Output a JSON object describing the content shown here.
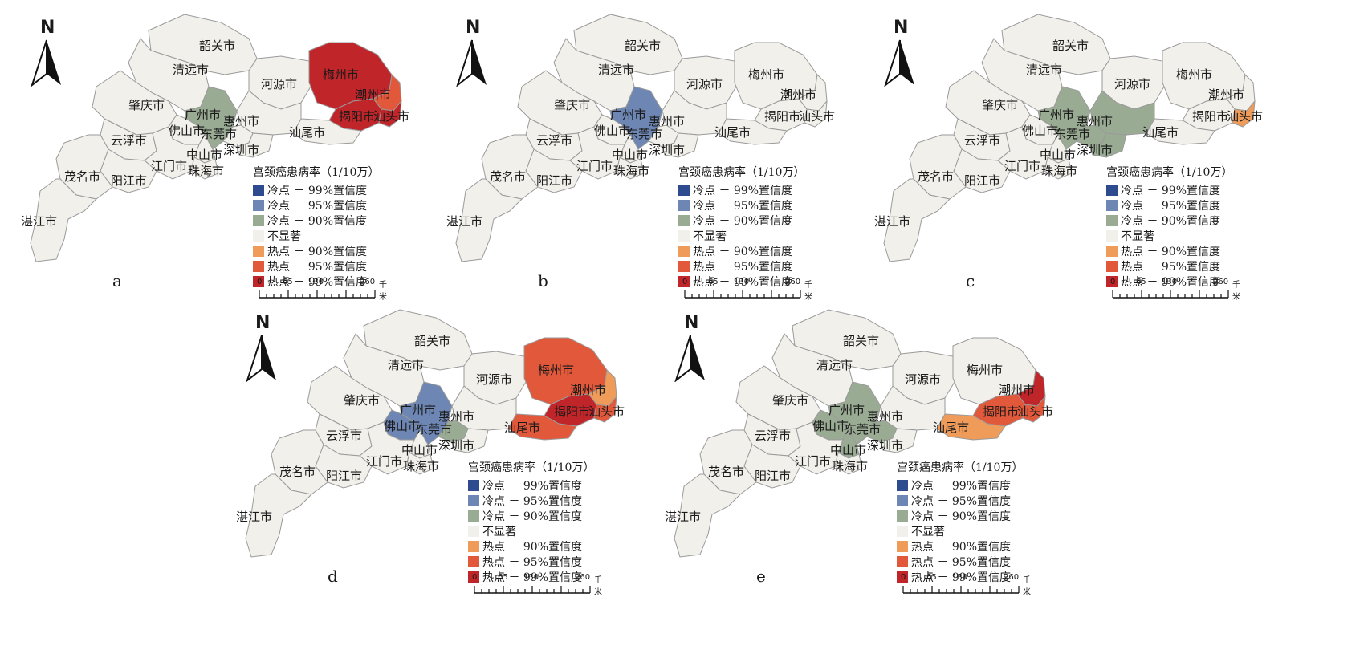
{
  "legend": {
    "title": "宫颈癌患病率（1/10万）",
    "items": [
      {
        "label": "冷点 － 99%置信度",
        "color": "#2e4b8f"
      },
      {
        "label": "冷点 － 95%置信度",
        "color": "#6d86b3"
      },
      {
        "label": "冷点 － 90%置信度",
        "color": "#9aab94"
      },
      {
        "label": "不显著",
        "color": "#f1f0eb"
      },
      {
        "label": "热点 － 90%置信度",
        "color": "#ef9b5a"
      },
      {
        "label": "热点 － 95%置信度",
        "color": "#e2583a"
      },
      {
        "label": "热点 － 99%置信度",
        "color": "#c0252a"
      }
    ]
  },
  "scale": {
    "ticks": [
      "0",
      "65",
      "130",
      "260"
    ],
    "unit": "千米"
  },
  "north_label": "N",
  "cities": [
    "韶关市",
    "清远市",
    "河源市",
    "梅州市",
    "潮州市",
    "肇庆市",
    "广州市",
    "惠州市",
    "揭阳市",
    "汕头市",
    "佛山市",
    "东莞市",
    "汕尾市",
    "云浮市",
    "中山市",
    "深圳市",
    "江门市",
    "珠海市",
    "茂名市",
    "阳江市",
    "湛江市"
  ],
  "panels": [
    {
      "id": "a",
      "label": "a",
      "classes": {
        "广州": "cold90",
        "梅州": "hot99",
        "潮州": "hot95",
        "揭阳": "hot99",
        "汕头": "hot99"
      }
    },
    {
      "id": "b",
      "label": "b",
      "classes": {
        "广州": "cold95"
      }
    },
    {
      "id": "c",
      "label": "c",
      "classes": {
        "广州": "cold90",
        "惠州": "cold90",
        "东莞": "cold90",
        "深圳": "cold90",
        "汕头": "hot90"
      }
    },
    {
      "id": "d",
      "label": "d",
      "classes": {
        "广州": "cold95",
        "佛山": "cold95",
        "东莞": "cold90",
        "梅州": "hot95",
        "潮州": "hot90",
        "揭阳": "hot99",
        "汕尾": "hot95",
        "汕头": "hot95"
      }
    },
    {
      "id": "e",
      "label": "e",
      "classes": {
        "广州": "cold90",
        "佛山": "cold90",
        "东莞": "cold90",
        "中山": "cold90",
        "潮州": "hot99",
        "揭阳": "hot95",
        "汕头": "hot95",
        "汕尾": "hot90"
      }
    }
  ]
}
